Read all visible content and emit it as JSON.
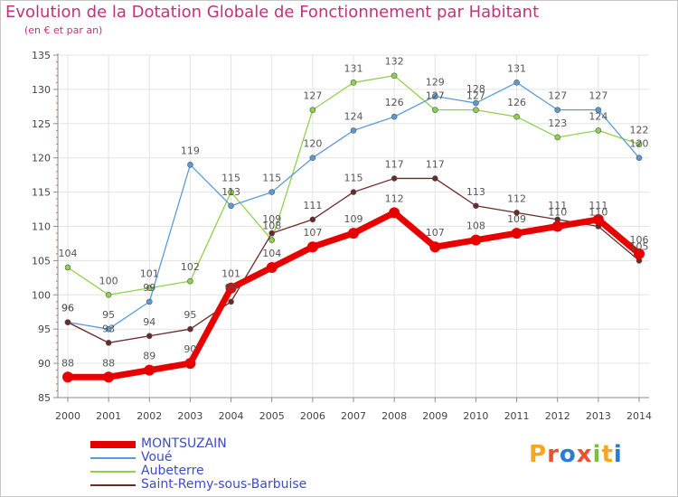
{
  "header": {
    "title": "Evolution de la Dotation Globale de Fonctionnement par Habitant",
    "subtitle": "(en € et par an)"
  },
  "logo": {
    "text": "Proxiti",
    "letters": [
      "P",
      "r",
      "o",
      "x",
      "i",
      "t",
      "i"
    ],
    "colors": [
      "#f5a623",
      "#e8532f",
      "#2a7bd4",
      "#e8532f",
      "#7ac143",
      "#f5a623",
      "#2a7bd4"
    ]
  },
  "chart_data": {
    "type": "line",
    "title": "Evolution de la Dotation Globale de Fonctionnement par Habitant",
    "ylabel": "(en € et par an)",
    "xlabel": "",
    "x": [
      "2000",
      "2001",
      "2002",
      "2003",
      "2004",
      "2005",
      "2006",
      "2007",
      "2008",
      "2009",
      "2010",
      "2011",
      "2012",
      "2013",
      "2014"
    ],
    "ylim": [
      85,
      135
    ],
    "yticks": [
      85,
      90,
      95,
      100,
      105,
      110,
      115,
      120,
      125,
      130,
      135
    ],
    "grid": true,
    "legend_position": "bottom-left",
    "series": [
      {
        "name": "MONTSUZAIN",
        "color": "#e60000",
        "values": [
          88,
          88,
          89,
          90,
          101,
          104,
          107,
          109,
          112,
          107,
          108,
          109,
          110,
          111,
          106
        ]
      },
      {
        "name": "Voué",
        "color": "#5b9bd5",
        "values": [
          96,
          95,
          99,
          119,
          113,
          115,
          120,
          124,
          126,
          129,
          128,
          131,
          127,
          127,
          120
        ]
      },
      {
        "name": "Aubeterre",
        "color": "#8ed14c",
        "values": [
          104,
          100,
          101,
          102,
          115,
          108,
          127,
          131,
          132,
          127,
          127,
          126,
          123,
          124,
          122
        ]
      },
      {
        "name": "Saint-Remy-sous-Barbuise",
        "color": "#6b2a2a",
        "values": [
          96,
          93,
          94,
          95,
          99,
          109,
          111,
          115,
          117,
          117,
          113,
          112,
          111,
          110,
          105
        ]
      }
    ]
  }
}
